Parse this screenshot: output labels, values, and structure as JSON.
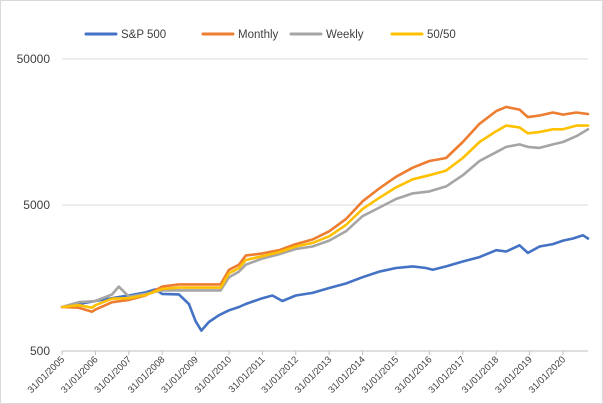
{
  "chart_data": {
    "type": "line",
    "y_scale": "log",
    "ylim": [
      500,
      50000
    ],
    "y_ticks": [
      50000,
      5000,
      500
    ],
    "x_ticks": [
      "31/01/2005",
      "31/01/2006",
      "31/01/2007",
      "31/01/2008",
      "31/01/2009",
      "31/01/2010",
      "31/01/2011",
      "31/01/2012",
      "31/01/2013",
      "31/01/2014",
      "31/01/2015",
      "31/01/2016",
      "31/01/2017",
      "31/01/2018",
      "31/01/2019",
      "31/01/2020"
    ],
    "xlim": [
      2005.0,
      2020.75
    ],
    "grid": "horizontal",
    "legend_position": "top",
    "series": [
      {
        "name": "S&P 500",
        "color": "#4472c4",
        "points": [
          [
            2005.0,
            1000
          ],
          [
            2005.5,
            1050
          ],
          [
            2006.0,
            1100
          ],
          [
            2006.5,
            1150
          ],
          [
            2007.0,
            1200
          ],
          [
            2007.5,
            1260
          ],
          [
            2007.8,
            1320
          ],
          [
            2008.0,
            1230
          ],
          [
            2008.5,
            1220
          ],
          [
            2008.8,
            1050
          ],
          [
            2009.0,
            800
          ],
          [
            2009.17,
            690
          ],
          [
            2009.4,
            790
          ],
          [
            2009.7,
            880
          ],
          [
            2010.0,
            950
          ],
          [
            2010.3,
            1000
          ],
          [
            2010.5,
            1050
          ],
          [
            2011.0,
            1150
          ],
          [
            2011.3,
            1200
          ],
          [
            2011.6,
            1100
          ],
          [
            2012.0,
            1200
          ],
          [
            2012.5,
            1250
          ],
          [
            2013.0,
            1350
          ],
          [
            2013.5,
            1450
          ],
          [
            2014.0,
            1600
          ],
          [
            2014.5,
            1750
          ],
          [
            2015.0,
            1850
          ],
          [
            2015.5,
            1900
          ],
          [
            2015.9,
            1850
          ],
          [
            2016.1,
            1800
          ],
          [
            2016.5,
            1900
          ],
          [
            2017.0,
            2050
          ],
          [
            2017.5,
            2200
          ],
          [
            2018.0,
            2450
          ],
          [
            2018.3,
            2400
          ],
          [
            2018.7,
            2650
          ],
          [
            2018.95,
            2350
          ],
          [
            2019.3,
            2600
          ],
          [
            2019.7,
            2700
          ],
          [
            2020.0,
            2850
          ],
          [
            2020.3,
            2950
          ],
          [
            2020.6,
            3100
          ],
          [
            2020.75,
            2950
          ]
        ]
      },
      {
        "name": "Monthly",
        "color": "#ed7d31",
        "points": [
          [
            2005.0,
            1000
          ],
          [
            2005.5,
            990
          ],
          [
            2005.9,
            930
          ],
          [
            2006.0,
            960
          ],
          [
            2006.5,
            1080
          ],
          [
            2007.0,
            1120
          ],
          [
            2007.5,
            1200
          ],
          [
            2008.0,
            1380
          ],
          [
            2008.5,
            1430
          ],
          [
            2009.0,
            1430
          ],
          [
            2009.5,
            1430
          ],
          [
            2009.75,
            1430
          ],
          [
            2010.0,
            1800
          ],
          [
            2010.3,
            1950
          ],
          [
            2010.5,
            2250
          ],
          [
            2011.0,
            2330
          ],
          [
            2011.5,
            2450
          ],
          [
            2012.0,
            2700
          ],
          [
            2012.5,
            2900
          ],
          [
            2013.0,
            3300
          ],
          [
            2013.5,
            4000
          ],
          [
            2014.0,
            5300
          ],
          [
            2014.5,
            6500
          ],
          [
            2015.0,
            7800
          ],
          [
            2015.5,
            9000
          ],
          [
            2016.0,
            10000
          ],
          [
            2016.5,
            10500
          ],
          [
            2017.0,
            13500
          ],
          [
            2017.5,
            18000
          ],
          [
            2018.0,
            22000
          ],
          [
            2018.3,
            23500
          ],
          [
            2018.7,
            22500
          ],
          [
            2018.95,
            20000
          ],
          [
            2019.3,
            20500
          ],
          [
            2019.7,
            21500
          ],
          [
            2020.0,
            20800
          ],
          [
            2020.4,
            21500
          ],
          [
            2020.75,
            21000
          ]
        ]
      },
      {
        "name": "Weekly",
        "color": "#a5a5a5",
        "points": [
          [
            2005.0,
            1000
          ],
          [
            2005.5,
            1080
          ],
          [
            2006.0,
            1100
          ],
          [
            2006.5,
            1220
          ],
          [
            2006.7,
            1380
          ],
          [
            2007.0,
            1180
          ],
          [
            2007.5,
            1230
          ],
          [
            2008.0,
            1300
          ],
          [
            2008.5,
            1300
          ],
          [
            2009.0,
            1300
          ],
          [
            2009.5,
            1300
          ],
          [
            2009.75,
            1300
          ],
          [
            2010.0,
            1600
          ],
          [
            2010.3,
            1750
          ],
          [
            2010.5,
            1950
          ],
          [
            2011.0,
            2150
          ],
          [
            2011.5,
            2300
          ],
          [
            2012.0,
            2500
          ],
          [
            2012.5,
            2600
          ],
          [
            2013.0,
            2850
          ],
          [
            2013.5,
            3300
          ],
          [
            2014.0,
            4200
          ],
          [
            2014.5,
            4800
          ],
          [
            2015.0,
            5500
          ],
          [
            2015.5,
            6000
          ],
          [
            2016.0,
            6200
          ],
          [
            2016.5,
            6700
          ],
          [
            2017.0,
            8000
          ],
          [
            2017.5,
            10000
          ],
          [
            2018.0,
            11500
          ],
          [
            2018.3,
            12500
          ],
          [
            2018.7,
            13000
          ],
          [
            2018.95,
            12500
          ],
          [
            2019.3,
            12300
          ],
          [
            2019.7,
            13000
          ],
          [
            2020.0,
            13500
          ],
          [
            2020.4,
            14800
          ],
          [
            2020.75,
            16500
          ]
        ]
      },
      {
        "name": "50/50",
        "color": "#ffc000",
        "points": [
          [
            2005.0,
            1000
          ],
          [
            2005.5,
            1030
          ],
          [
            2005.9,
            990
          ],
          [
            2006.0,
            1030
          ],
          [
            2006.5,
            1140
          ],
          [
            2007.0,
            1150
          ],
          [
            2007.5,
            1210
          ],
          [
            2008.0,
            1330
          ],
          [
            2008.5,
            1360
          ],
          [
            2009.0,
            1360
          ],
          [
            2009.5,
            1360
          ],
          [
            2009.75,
            1360
          ],
          [
            2010.0,
            1700
          ],
          [
            2010.3,
            1850
          ],
          [
            2010.5,
            2100
          ],
          [
            2011.0,
            2230
          ],
          [
            2011.5,
            2380
          ],
          [
            2012.0,
            2600
          ],
          [
            2012.5,
            2750
          ],
          [
            2013.0,
            3050
          ],
          [
            2013.5,
            3650
          ],
          [
            2014.0,
            4700
          ],
          [
            2014.5,
            5600
          ],
          [
            2015.0,
            6600
          ],
          [
            2015.5,
            7500
          ],
          [
            2016.0,
            8000
          ],
          [
            2016.5,
            8600
          ],
          [
            2017.0,
            10500
          ],
          [
            2017.5,
            13500
          ],
          [
            2018.0,
            16000
          ],
          [
            2018.3,
            17500
          ],
          [
            2018.7,
            17000
          ],
          [
            2018.95,
            15500
          ],
          [
            2019.3,
            15800
          ],
          [
            2019.7,
            16500
          ],
          [
            2020.0,
            16500
          ],
          [
            2020.4,
            17500
          ],
          [
            2020.75,
            17500
          ]
        ]
      }
    ]
  }
}
